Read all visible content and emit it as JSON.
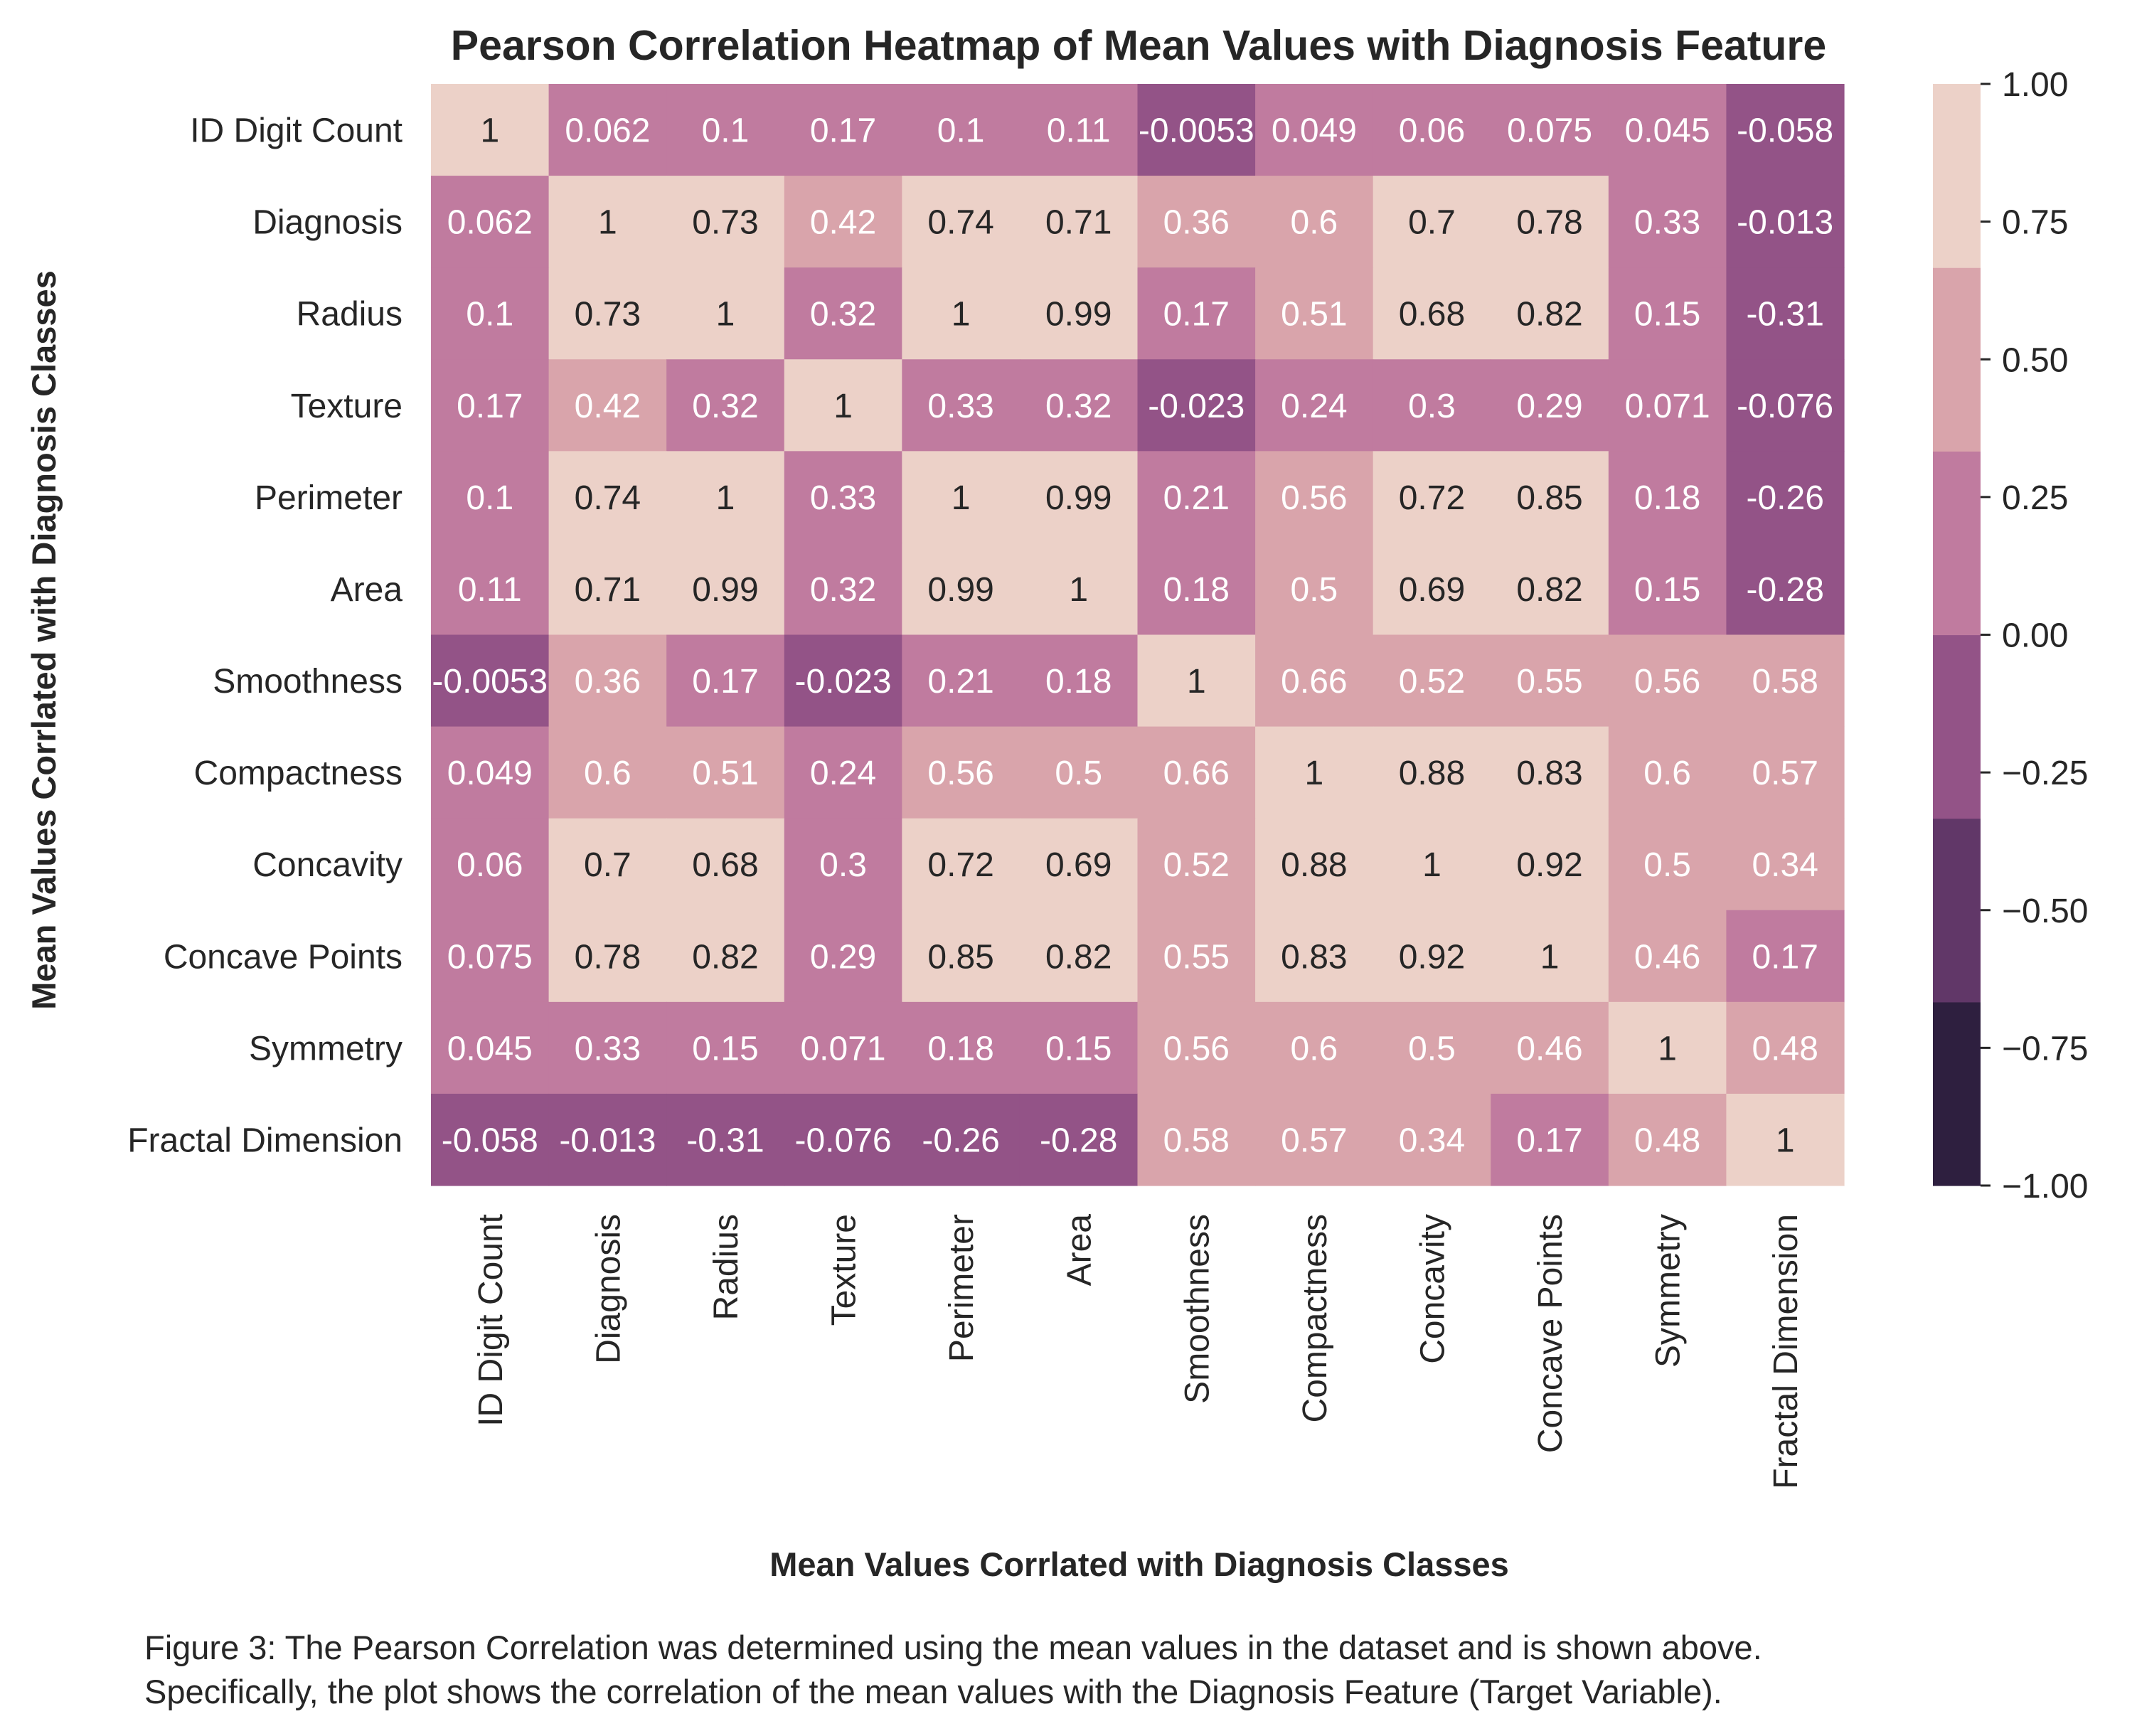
{
  "chart_data": {
    "type": "heatmap",
    "title": "Pearson Correlation Heatmap of Mean Values with Diagnosis Feature",
    "xlabel": "Mean Values Corrlated with Diagnosis Classes",
    "ylabel": "Mean Values Corrlated with Diagnosis Classes",
    "labels": [
      "ID Digit Count",
      "Diagnosis",
      "Radius",
      "Texture",
      "Perimeter",
      "Area",
      "Smoothness",
      "Compactness",
      "Concavity",
      "Concave Points",
      "Symmetry",
      "Fractal Dimension"
    ],
    "matrix": [
      [
        1,
        0.062,
        0.1,
        0.17,
        0.1,
        0.11,
        -0.0053,
        0.049,
        0.06,
        0.075,
        0.045,
        -0.058
      ],
      [
        0.062,
        1,
        0.73,
        0.42,
        0.74,
        0.71,
        0.36,
        0.6,
        0.7,
        0.78,
        0.33,
        -0.013
      ],
      [
        0.1,
        0.73,
        1,
        0.32,
        1,
        0.99,
        0.17,
        0.51,
        0.68,
        0.82,
        0.15,
        -0.31
      ],
      [
        0.17,
        0.42,
        0.32,
        1,
        0.33,
        0.32,
        -0.023,
        0.24,
        0.3,
        0.29,
        0.071,
        -0.076
      ],
      [
        0.1,
        0.74,
        1,
        0.33,
        1,
        0.99,
        0.21,
        0.56,
        0.72,
        0.85,
        0.18,
        -0.26
      ],
      [
        0.11,
        0.71,
        0.99,
        0.32,
        0.99,
        1,
        0.18,
        0.5,
        0.69,
        0.82,
        0.15,
        -0.28
      ],
      [
        -0.0053,
        0.36,
        0.17,
        -0.023,
        0.21,
        0.18,
        1,
        0.66,
        0.52,
        0.55,
        0.56,
        0.58
      ],
      [
        0.049,
        0.6,
        0.51,
        0.24,
        0.56,
        0.5,
        0.66,
        1,
        0.88,
        0.83,
        0.6,
        0.57
      ],
      [
        0.06,
        0.7,
        0.68,
        0.3,
        0.72,
        0.69,
        0.52,
        0.88,
        1,
        0.92,
        0.5,
        0.34
      ],
      [
        0.075,
        0.78,
        0.82,
        0.29,
        0.85,
        0.82,
        0.55,
        0.83,
        0.92,
        1,
        0.46,
        0.17
      ],
      [
        0.045,
        0.33,
        0.15,
        0.071,
        0.18,
        0.15,
        0.56,
        0.6,
        0.5,
        0.46,
        1,
        0.48
      ],
      [
        -0.058,
        -0.013,
        -0.31,
        -0.076,
        -0.26,
        -0.28,
        0.58,
        0.57,
        0.34,
        0.17,
        0.48,
        1
      ]
    ],
    "value_labels": [
      [
        "1",
        "0.062",
        "0.1",
        "0.17",
        "0.1",
        "0.11",
        "-0.0053",
        "0.049",
        "0.06",
        "0.075",
        "0.045",
        "-0.058"
      ],
      [
        "0.062",
        "1",
        "0.73",
        "0.42",
        "0.74",
        "0.71",
        "0.36",
        "0.6",
        "0.7",
        "0.78",
        "0.33",
        "-0.013"
      ],
      [
        "0.1",
        "0.73",
        "1",
        "0.32",
        "1",
        "0.99",
        "0.17",
        "0.51",
        "0.68",
        "0.82",
        "0.15",
        "-0.31"
      ],
      [
        "0.17",
        "0.42",
        "0.32",
        "1",
        "0.33",
        "0.32",
        "-0.023",
        "0.24",
        "0.3",
        "0.29",
        "0.071",
        "-0.076"
      ],
      [
        "0.1",
        "0.74",
        "1",
        "0.33",
        "1",
        "0.99",
        "0.21",
        "0.56",
        "0.72",
        "0.85",
        "0.18",
        "-0.26"
      ],
      [
        "0.11",
        "0.71",
        "0.99",
        "0.32",
        "0.99",
        "1",
        "0.18",
        "0.5",
        "0.69",
        "0.82",
        "0.15",
        "-0.28"
      ],
      [
        "-0.0053",
        "0.36",
        "0.17",
        "-0.023",
        "0.21",
        "0.18",
        "1",
        "0.66",
        "0.52",
        "0.55",
        "0.56",
        "0.58"
      ],
      [
        "0.049",
        "0.6",
        "0.51",
        "0.24",
        "0.56",
        "0.5",
        "0.66",
        "1",
        "0.88",
        "0.83",
        "0.6",
        "0.57"
      ],
      [
        "0.06",
        "0.7",
        "0.68",
        "0.3",
        "0.72",
        "0.69",
        "0.52",
        "0.88",
        "1",
        "0.92",
        "0.5",
        "0.34"
      ],
      [
        "0.075",
        "0.78",
        "0.82",
        "0.29",
        "0.85",
        "0.82",
        "0.55",
        "0.83",
        "0.92",
        "1",
        "0.46",
        "0.17"
      ],
      [
        "0.045",
        "0.33",
        "0.15",
        "0.071",
        "0.18",
        "0.15",
        "0.56",
        "0.6",
        "0.5",
        "0.46",
        "1",
        "0.48"
      ],
      [
        "-0.058",
        "-0.013",
        "-0.31",
        "-0.076",
        "-0.26",
        "-0.28",
        "0.58",
        "0.57",
        "0.34",
        "0.17",
        "0.48",
        "1"
      ]
    ],
    "colorbar": {
      "range": [
        -1,
        1
      ],
      "ticks": [
        1,
        0.75,
        0.5,
        0.25,
        0,
        -0.25,
        -0.5,
        -0.75,
        -1
      ],
      "tick_labels": [
        "1.00",
        "0.75",
        "0.50",
        "0.25",
        "0.00",
        "−0.25",
        "−0.50",
        "−0.75",
        "−1.00"
      ],
      "position": "right",
      "bins": [
        {
          "from": -1.0,
          "to": -0.6667,
          "color": "#2e1f3f"
        },
        {
          "from": -0.6667,
          "to": -0.3333,
          "color": "#613768"
        },
        {
          "from": -0.3333,
          "to": 0.0,
          "color": "#935387"
        },
        {
          "from": 0.0,
          "to": 0.3333,
          "color": "#c07b9f"
        },
        {
          "from": 0.3333,
          "to": 0.6667,
          "color": "#d9a4ab"
        },
        {
          "from": 0.6667,
          "to": 1.0,
          "color": "#ecd1c8"
        }
      ]
    },
    "text_colors": {
      "on_light": "#262626",
      "on_dark": "#ffffff"
    },
    "grid": false
  },
  "caption": {
    "line1": "Figure 3: The Pearson Correlation was determined using the mean values in the dataset and is shown above.",
    "line2": "Specifically, the plot shows the correlation of the mean values with the Diagnosis Feature (Target Variable)."
  }
}
